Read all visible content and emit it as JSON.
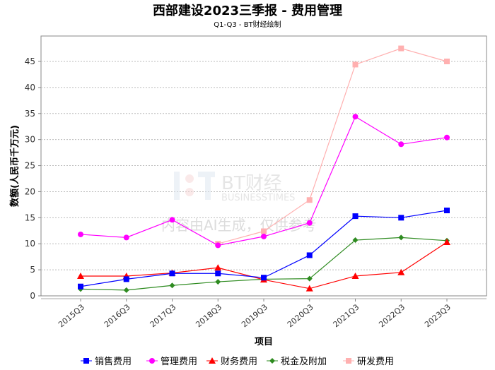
{
  "chart_data": {
    "type": "line",
    "title": "西部建设2023三季报 - 费用管理",
    "subtitle": "Q1-Q3 - BT财经绘制",
    "xlabel": "项目",
    "ylabel": "数额(人民币千万元)",
    "ylim": [
      0,
      50
    ],
    "yticks": [
      0,
      5,
      10,
      15,
      20,
      25,
      30,
      35,
      40,
      45
    ],
    "grid": true,
    "legend_position": "bottom",
    "categories": [
      "2015Q3",
      "2016Q3",
      "2017Q3",
      "2018Q3",
      "2019Q3",
      "2020Q3",
      "2021Q3",
      "2022Q3",
      "2023Q3"
    ],
    "series": [
      {
        "name": "销售费用",
        "color": "#0000ff",
        "marker": "square",
        "values": [
          1.8,
          3.2,
          4.3,
          4.3,
          3.5,
          7.8,
          15.3,
          15.0,
          16.4
        ]
      },
      {
        "name": "管理费用",
        "color": "#ff00ff",
        "marker": "circle",
        "values": [
          11.8,
          11.2,
          14.6,
          9.7,
          11.4,
          14.0,
          34.4,
          29.1,
          30.4
        ]
      },
      {
        "name": "财务费用",
        "color": "#ff0000",
        "marker": "triangle",
        "values": [
          3.8,
          3.8,
          4.4,
          5.4,
          3.1,
          1.4,
          3.8,
          4.5,
          10.3
        ]
      },
      {
        "name": "税金及附加",
        "color": "#2e8b20",
        "marker": "diamond",
        "values": [
          1.3,
          1.1,
          2.0,
          2.7,
          3.2,
          3.3,
          10.7,
          11.2,
          10.6
        ]
      },
      {
        "name": "研发费用",
        "color": "#ffb0b0",
        "marker": "square",
        "values": [
          null,
          null,
          null,
          10.0,
          12.4,
          18.4,
          44.4,
          47.5,
          45.0
        ]
      }
    ]
  },
  "watermark": {
    "brand": "BT财经",
    "brand_en": "BUSINESSTIMES",
    "notice": "内容由AI生成，仅供参考"
  }
}
